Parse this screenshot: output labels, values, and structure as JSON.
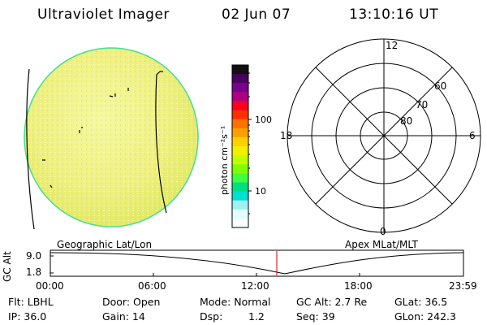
{
  "header": {
    "title": "Ultraviolet Imager",
    "date": "02 Jun 07",
    "time": "13:10:16 UT"
  },
  "colorbar": {
    "label": "photon cm⁻²s⁻¹",
    "ticks": [
      "100",
      "10"
    ],
    "colors": [
      "#111111",
      "#4b0060",
      "#7a0090",
      "#b00080",
      "#ff0020",
      "#ff3000",
      "#ff7000",
      "#ffa000",
      "#ffd000",
      "#f0f000",
      "#c0ff00",
      "#80ff00",
      "#40ff40",
      "#00e080",
      "#00e0d0",
      "#a0f0f0",
      "#e0ffff",
      "#f8ffff"
    ]
  },
  "polar_plot": {
    "lat_labels": [
      "80",
      "70",
      "60"
    ],
    "mlt_labels": {
      "top": "12",
      "left": "18",
      "right": "6",
      "bottom": "0"
    }
  },
  "timeline": {
    "left_title": "Geographic Lat/Lon",
    "right_title": "Apex MLat/MLT",
    "y_label": "GC Alt",
    "y_ticks": [
      "9.0",
      "1.8"
    ],
    "x_ticks": [
      "00:00",
      "06:00",
      "12:00",
      "18:00",
      "23:59"
    ],
    "marker_time": "13:10"
  },
  "status": {
    "filter": "Flt: LBHL",
    "door": "Door: Open",
    "mode": "Mode: Normal",
    "gc_alt": "GC Alt: 2.7 Re",
    "glat": "GLat:  36.5",
    "ip": "IP: 36.0",
    "gain": "Gain: 14",
    "dsp_label": "Dsp:",
    "dsp_value": "1.2",
    "seq": "Seq: 39",
    "glon": "GLon: 242.3"
  },
  "colors": {
    "earth_disk": "#e8f070",
    "earth_rim": "#40e090",
    "marker": "#cc0000"
  }
}
